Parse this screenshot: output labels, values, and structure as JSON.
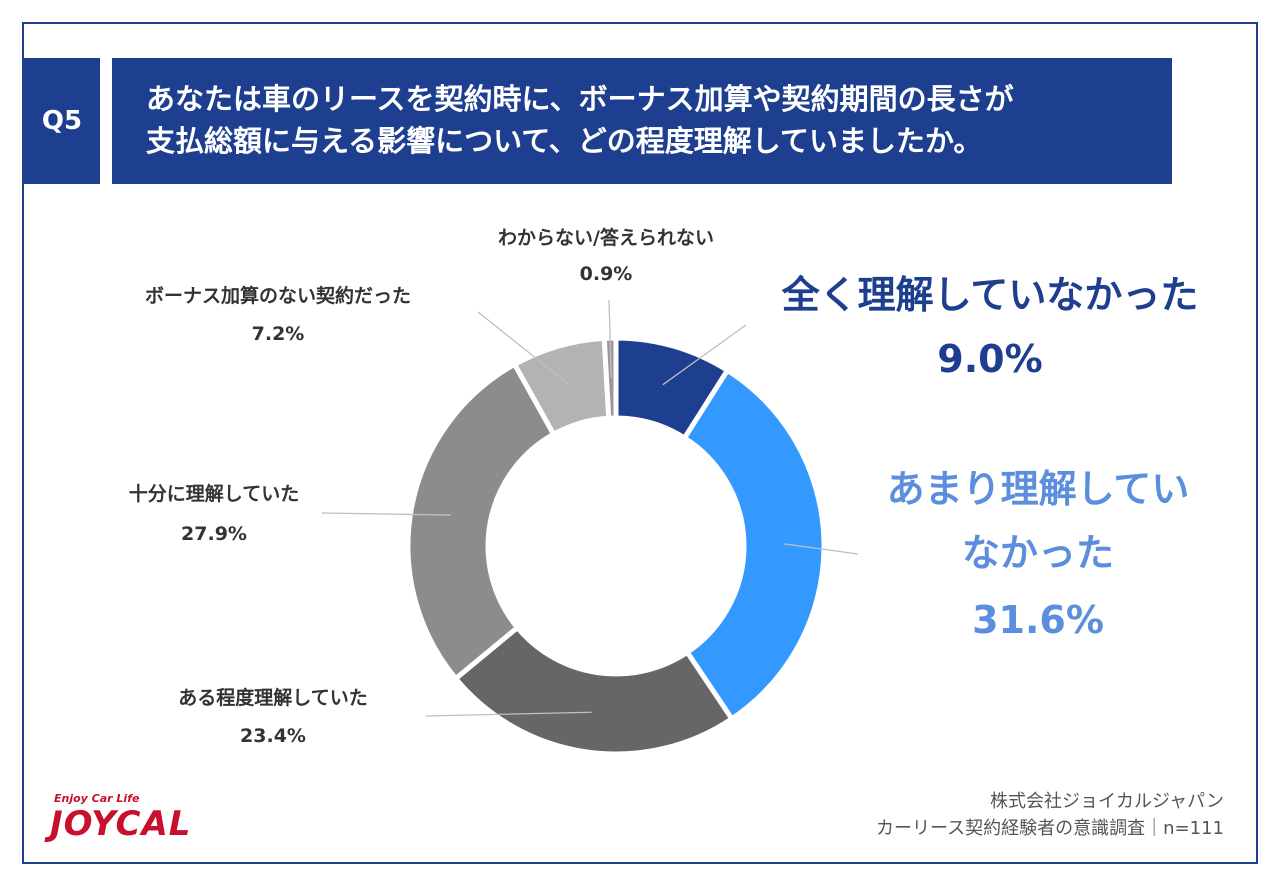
{
  "header": {
    "q_label": "Q5",
    "title_line1": "あなたは車のリースを契約時に、ボーナス加算や契約期間の長さが",
    "title_line2": "支払総額に与える影響について、どの程度理解していましたか。"
  },
  "chart_data": {
    "type": "pie",
    "donut": true,
    "slices": [
      {
        "label": "全く理解していなかった",
        "value": 9.0,
        "value_text": "9.0%",
        "color": "#1e3f8f"
      },
      {
        "label": "あまり理解していなかった",
        "value": 31.6,
        "value_text": "31.6%",
        "color": "#3399ff"
      },
      {
        "label": "ある程度理解していた",
        "value": 23.4,
        "value_text": "23.4%",
        "color": "#666666"
      },
      {
        "label": "十分に理解していた",
        "value": 27.9,
        "value_text": "27.9%",
        "color": "#8c8c8c"
      },
      {
        "label": "ボーナス加算のない契約だった",
        "value": 7.2,
        "value_text": "7.2%",
        "color": "#b3b3b3"
      },
      {
        "label": "わからない/答えられない",
        "value": 0.9,
        "value_text": "0.9%",
        "color": "#999999"
      }
    ],
    "label_lines": {
      "slice1": [
        "あまり理解してい",
        "なかった"
      ]
    }
  },
  "source": {
    "line1": "株式会社ジョイカルジャパン",
    "line2": "カーリース契約経験者の意識調査｜n=111"
  },
  "logo": {
    "tagline": "Enjoy Car Life",
    "word": "JOYCAL",
    "brand_color": "#c8102e"
  }
}
